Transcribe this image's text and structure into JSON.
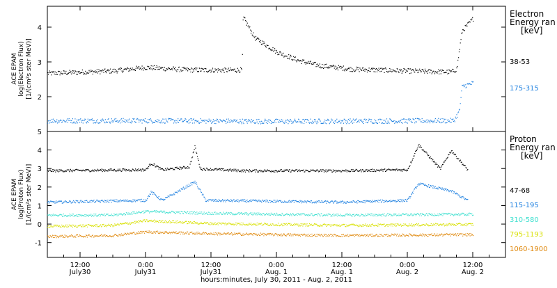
{
  "chart_data": [
    {
      "type": "scatter",
      "panel": "electron",
      "ylabel": [
        "ACE EPAM",
        "log(Electron Flux)",
        "[1/(cm²s ster MeV)]"
      ],
      "ylim": [
        1,
        4.6
      ],
      "yticks": [
        2,
        3,
        4
      ],
      "legend_title": [
        "Electron",
        "Energy ran",
        "[keV]"
      ],
      "x_start": "2011-07-30 06:00",
      "x_end": "2011-08-02 18:00",
      "series": [
        {
          "name": "38-53",
          "color": "#000000",
          "points": [
            [
              "2011-07-30 06:00",
              2.68
            ],
            [
              "2011-07-30 18:00",
              2.75
            ],
            [
              "2011-07-31 00:00",
              2.85
            ],
            [
              "2011-07-31 08:00",
              2.78
            ],
            [
              "2011-07-31 15:00",
              2.77
            ],
            [
              "2011-07-31 17:40",
              2.78
            ],
            [
              "2011-07-31 17:50",
              4.3
            ],
            [
              "2011-07-31 20:00",
              3.7
            ],
            [
              "2011-08-01 00:00",
              3.3
            ],
            [
              "2011-08-01 04:00",
              3.05
            ],
            [
              "2011-08-01 08:00",
              2.9
            ],
            [
              "2011-08-01 14:00",
              2.8
            ],
            [
              "2011-08-02 00:00",
              2.75
            ],
            [
              "2011-08-02 08:00",
              2.72
            ],
            [
              "2011-08-02 09:00",
              2.8
            ],
            [
              "2011-08-02 10:00",
              3.9
            ],
            [
              "2011-08-02 12:00",
              4.25
            ]
          ]
        },
        {
          "name": "175-315",
          "color": "#1e80e0",
          "points": [
            [
              "2011-07-30 06:00",
              1.32
            ],
            [
              "2011-07-31 00:00",
              1.32
            ],
            [
              "2011-08-01 00:00",
              1.3
            ],
            [
              "2011-08-02 08:30",
              1.32
            ],
            [
              "2011-08-02 09:30",
              1.6
            ],
            [
              "2011-08-02 10:00",
              2.3
            ],
            [
              "2011-08-02 12:00",
              2.4
            ]
          ]
        }
      ]
    },
    {
      "type": "scatter",
      "panel": "proton",
      "ylabel": [
        "ACE EPAM",
        "log(Proton Flux)",
        "[1/(cm²s ster MeV)]"
      ],
      "ylim": [
        -1.8,
        5
      ],
      "yticks": [
        -1,
        0,
        1,
        2,
        3,
        4,
        5
      ],
      "legend_title": [
        "Proton",
        "Energy ran",
        "[keV]"
      ],
      "xticks": [
        {
          "t": "2011-07-30 12:00",
          "label": [
            "12:00",
            "July30"
          ]
        },
        {
          "t": "2011-07-31 00:00",
          "label": [
            "0:00",
            "July31"
          ]
        },
        {
          "t": "2011-07-31 12:00",
          "label": [
            "12:00",
            "July31"
          ]
        },
        {
          "t": "2011-08-01 00:00",
          "label": [
            "0:00",
            "Aug. 1"
          ]
        },
        {
          "t": "2011-08-01 12:00",
          "label": [
            "12:00",
            "Aug. 1"
          ]
        },
        {
          "t": "2011-08-02 00:00",
          "label": [
            "0:00",
            "Aug. 2"
          ]
        },
        {
          "t": "2011-08-02 12:00",
          "label": [
            "12:00",
            "Aug. 2"
          ]
        }
      ],
      "xlabel": "hours:minutes, July 30, 2011 - Aug. 2, 2011",
      "series": [
        {
          "name": "47-68",
          "color": "#000000",
          "points": [
            [
              "2011-07-30 06:00",
              2.9
            ],
            [
              "2011-07-31 00:00",
              2.95
            ],
            [
              "2011-07-31 01:00",
              3.3
            ],
            [
              "2011-07-31 03:00",
              2.95
            ],
            [
              "2011-07-31 08:00",
              3.1
            ],
            [
              "2011-07-31 09:00",
              4.2
            ],
            [
              "2011-07-31 10:00",
              3.0
            ],
            [
              "2011-07-31 18:00",
              2.9
            ],
            [
              "2011-08-01 12:00",
              2.9
            ],
            [
              "2011-08-02 00:00",
              2.95
            ],
            [
              "2011-08-02 02:00",
              4.3
            ],
            [
              "2011-08-02 06:00",
              3.0
            ],
            [
              "2011-08-02 08:00",
              4.0
            ],
            [
              "2011-08-02 11:00",
              2.95
            ]
          ]
        },
        {
          "name": "115-195",
          "color": "#1e80e0",
          "points": [
            [
              "2011-07-30 06:00",
              1.2
            ],
            [
              "2011-07-31 00:00",
              1.3
            ],
            [
              "2011-07-31 01:00",
              1.75
            ],
            [
              "2011-07-31 03:00",
              1.3
            ],
            [
              "2011-07-31 09:00",
              2.3
            ],
            [
              "2011-07-31 11:00",
              1.3
            ],
            [
              "2011-08-01 12:00",
              1.2
            ],
            [
              "2011-08-02 00:00",
              1.3
            ],
            [
              "2011-08-02 02:00",
              2.2
            ],
            [
              "2011-08-02 08:00",
              1.8
            ],
            [
              "2011-08-02 11:00",
              1.3
            ]
          ]
        },
        {
          "name": "310-580",
          "color": "#40e0d0",
          "points": [
            [
              "2011-07-30 06:00",
              0.5
            ],
            [
              "2011-07-30 18:00",
              0.5
            ],
            [
              "2011-07-31 00:00",
              0.7
            ],
            [
              "2011-07-31 12:00",
              0.6
            ],
            [
              "2011-08-01 12:00",
              0.5
            ],
            [
              "2011-08-02 12:00",
              0.55
            ]
          ]
        },
        {
          "name": "795-1193",
          "color": "#d8e000",
          "points": [
            [
              "2011-07-30 06:00",
              -0.1
            ],
            [
              "2011-07-30 18:00",
              -0.05
            ],
            [
              "2011-07-31 00:00",
              0.2
            ],
            [
              "2011-07-31 12:00",
              0.05
            ],
            [
              "2011-08-01 12:00",
              -0.05
            ],
            [
              "2011-08-02 12:00",
              0.0
            ]
          ]
        },
        {
          "name": "1060-1900",
          "color": "#e08a10",
          "points": [
            [
              "2011-07-30 06:00",
              -0.65
            ],
            [
              "2011-07-30 18:00",
              -0.6
            ],
            [
              "2011-07-31 00:00",
              -0.4
            ],
            [
              "2011-07-31 12:00",
              -0.5
            ],
            [
              "2011-08-01 12:00",
              -0.6
            ],
            [
              "2011-08-02 12:00",
              -0.55
            ]
          ]
        }
      ]
    }
  ]
}
